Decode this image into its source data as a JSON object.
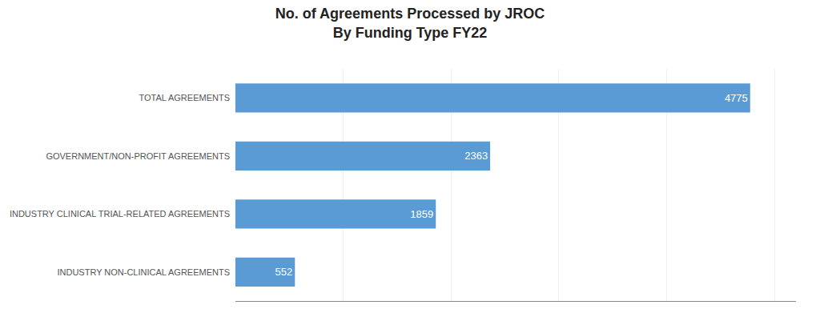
{
  "chart_data": {
    "type": "bar",
    "orientation": "horizontal",
    "title": "No. of Agreements Processed by JROC",
    "subtitle": "By Funding Type FY22",
    "categories": [
      "TOTAL AGREEMENTS",
      "GOVERNMENT/NON-PROFIT AGREEMENTS",
      "INDUSTRY CLINICAL TRIAL-RELATED AGREEMENTS",
      "INDUSTRY NON-CLINICAL AGREEMENTS"
    ],
    "values": [
      4775,
      2363,
      1859,
      552
    ],
    "color": "#5b9bd5",
    "xlim": [
      0,
      5200
    ],
    "xticks": [
      0,
      1000,
      2000,
      3000,
      4000,
      5000
    ],
    "grid": true,
    "tick_labels": "y",
    "data_labels": true
  }
}
